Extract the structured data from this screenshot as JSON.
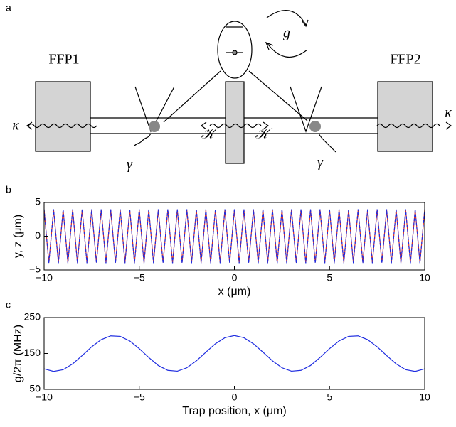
{
  "diagram": {
    "panel_label": "a",
    "labels": [
      "FFP1",
      "FFP2",
      "g",
      "κ",
      "κ",
      "γ",
      "γ",
      "𝒦",
      "𝒦"
    ]
  },
  "chart_data": [
    {
      "type": "line",
      "panel_label": "b",
      "x_label": "x (μm)",
      "y_label": "y, z (μm)",
      "x": [
        -10,
        -9.75,
        -9.5,
        -9.25,
        -9,
        -8.75,
        -8.5,
        -8.25,
        -8,
        -7.75,
        -7.5,
        -7.25,
        -7,
        -6.75,
        -6.5,
        -6.25,
        -6,
        -5.75,
        -5.5,
        -5.25,
        -5,
        -4.75,
        -4.5,
        -4.25,
        -4,
        -3.75,
        -3.5,
        -3.25,
        -3,
        -2.75,
        -2.5,
        -2.25,
        -2,
        -1.75,
        -1.5,
        -1.25,
        -1,
        -0.75,
        -0.5,
        -0.25,
        0,
        0.25,
        0.5,
        0.75,
        1,
        1.25,
        1.5,
        1.75,
        2,
        2.25,
        2.5,
        2.75,
        3,
        3.25,
        3.5,
        3.75,
        4,
        4.25,
        4.5,
        4.75,
        5,
        5.25,
        5.5,
        5.75,
        6,
        6.25,
        6.5,
        6.75,
        7,
        7.25,
        7.5,
        7.75,
        8,
        8.25,
        8.5,
        8.75,
        9,
        9.25,
        9.5,
        9.75,
        10
      ],
      "series": [
        {
          "color": "#e0301e",
          "line_style": "solid",
          "values": [
            3.9,
            -3.9,
            3.9,
            -3.9,
            3.9,
            -3.9,
            3.9,
            -3.9,
            3.9,
            -3.9,
            3.9,
            -3.9,
            3.9,
            -3.9,
            3.9,
            -3.9,
            3.9,
            -3.9,
            3.9,
            -3.9,
            3.9,
            -3.9,
            3.9,
            -3.9,
            3.9,
            -3.9,
            3.9,
            -3.9,
            3.9,
            -3.9,
            3.9,
            -3.9,
            3.9,
            -3.9,
            3.9,
            -3.9,
            3.9,
            -3.9,
            3.9,
            -3.9,
            3.9,
            -3.9,
            3.9,
            -3.9,
            3.9,
            -3.9,
            3.9,
            -3.9,
            3.9,
            -3.9,
            3.9,
            -3.9,
            3.9,
            -3.9,
            3.9,
            -3.9,
            3.9,
            -3.9,
            3.9,
            -3.9,
            3.9,
            -3.9,
            3.9,
            -3.9,
            3.9,
            -3.9,
            3.9,
            -3.9,
            3.9,
            -3.9,
            3.9,
            -3.9,
            3.9,
            -3.9,
            3.9,
            -3.9,
            3.9,
            -3.9,
            3.9,
            -3.9,
            3.9
          ]
        },
        {
          "color": "#1f2de0",
          "line_style": "dashed",
          "values": [
            4,
            -4,
            4,
            -4,
            4,
            -4,
            4,
            -4,
            4,
            -4,
            4,
            -4,
            4,
            -4,
            4,
            -4,
            4,
            -4,
            4,
            -4,
            4,
            -4,
            4,
            -4,
            4,
            -4,
            4,
            -4,
            4,
            -4,
            4,
            -4,
            4,
            -4,
            4,
            -4,
            4,
            -4,
            4,
            -4,
            4,
            -4,
            4,
            -4,
            4,
            -4,
            4,
            -4,
            4,
            -4,
            4,
            -4,
            4,
            -4,
            4,
            -4,
            4,
            -4,
            4,
            -4,
            4,
            -4,
            4,
            -4,
            4,
            -4,
            4,
            -4,
            4,
            -4,
            4,
            -4,
            4,
            -4,
            4,
            -4,
            4,
            -4,
            4,
            -4,
            4
          ]
        }
      ],
      "xlim": [
        -10,
        10
      ],
      "ylim": [
        -5,
        5
      ],
      "xticks": [
        {
          "value": -10,
          "label": "−10"
        },
        {
          "value": -5,
          "label": "−5"
        },
        0,
        5,
        10
      ],
      "yticks": [
        {
          "value": -5,
          "label": "−5"
        },
        0,
        5
      ]
    },
    {
      "type": "line",
      "panel_label": "c",
      "x_label": "Trap position, x (μm)",
      "y_label": "g/2π (MHz)",
      "x": [
        -10,
        -9.5,
        -9,
        -8.5,
        -8,
        -7.5,
        -7,
        -6.5,
        -6,
        -5.5,
        -5,
        -4.5,
        -4,
        -3.5,
        -3,
        -2.5,
        -2,
        -1.5,
        -1,
        -0.5,
        0,
        0.5,
        1,
        1.5,
        2,
        2.5,
        3,
        3.5,
        4,
        4.5,
        5,
        5.5,
        6,
        6.5,
        7,
        7.5,
        8,
        8.5,
        9,
        9.5,
        10
      ],
      "series": [
        {
          "color": "#1f2de0",
          "line_style": "solid",
          "values": [
            107.1,
            100.1,
            104.8,
            121.1,
            144.1,
            168.6,
            188.6,
            199.0,
            197.7,
            184.9,
            163.5,
            138.8,
            116.4,
            103.0,
            100.6,
            110.1,
            129.4,
            153.7,
            177.1,
            193.9,
            200,
            193.9,
            177.1,
            153.7,
            129.4,
            110.1,
            100.6,
            103.0,
            116.4,
            138.8,
            163.5,
            184.9,
            197.7,
            199.0,
            188.6,
            168.6,
            144.1,
            121.1,
            104.8,
            100.1,
            107.1
          ]
        }
      ],
      "xlim": [
        -10,
        10
      ],
      "ylim": [
        50,
        250
      ],
      "xticks": [
        {
          "value": -10,
          "label": "−10"
        },
        {
          "value": -5,
          "label": "−5"
        },
        0,
        5,
        10
      ],
      "yticks": [
        50,
        150,
        250
      ]
    }
  ]
}
